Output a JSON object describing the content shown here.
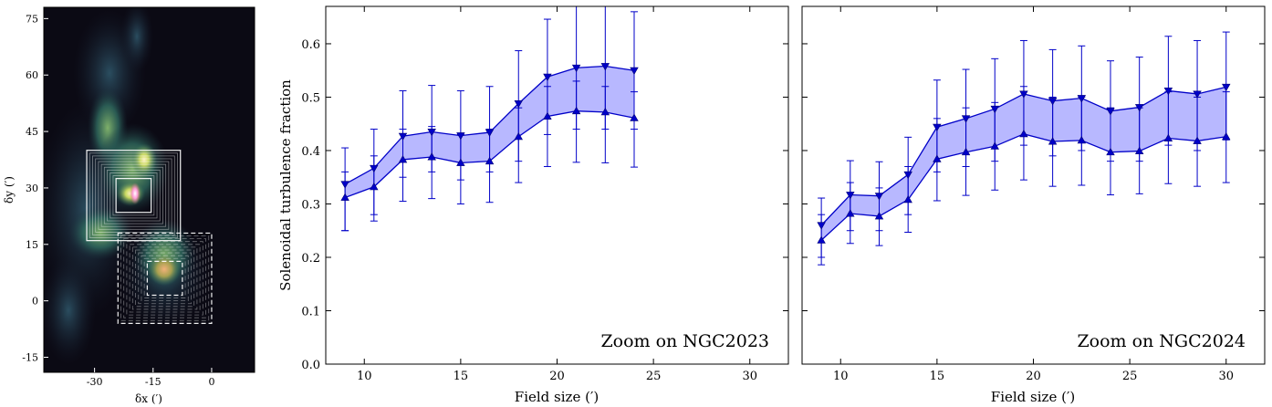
{
  "chart_data": [
    {
      "type": "image",
      "xlabel": "δx (′)",
      "ylabel": "δy (′)",
      "xticks": [
        -30,
        -15,
        0
      ],
      "yticks": [
        -15,
        0,
        15,
        30,
        45,
        60,
        75
      ],
      "xlim": [
        -43,
        11
      ],
      "ylim": [
        -19,
        78
      ],
      "colors": {
        "background": "#0b0a14",
        "emission": "#3f7f6a",
        "bright": "#b8cf58",
        "peak": "#ff9ad8"
      }
    },
    {
      "type": "area",
      "annotation": "Zoom on NGC2023",
      "xlabel": "Field size (′)",
      "ylabel": "Solenoidal turbulence fraction",
      "xlim": [
        8,
        32
      ],
      "ylim": [
        0.0,
        0.67
      ],
      "xticks": [
        10,
        15,
        20,
        25,
        30
      ],
      "yticks": [
        0.0,
        0.1,
        0.2,
        0.3,
        0.4,
        0.5,
        0.6
      ],
      "x": [
        9,
        10.5,
        12,
        13.5,
        15,
        16.5,
        18,
        19.5,
        21,
        22.5,
        24
      ],
      "series": [
        {
          "marker": "triangle-down",
          "values": [
            0.337,
            0.367,
            0.427,
            0.435,
            0.428,
            0.434,
            0.488,
            0.538,
            0.555,
            0.558,
            0.55
          ],
          "err_low": [
            0.25,
            0.28,
            0.35,
            0.36,
            0.345,
            0.36,
            0.38,
            0.43,
            0.44,
            0.44,
            0.44
          ],
          "err_high": [
            0.405,
            0.44,
            0.512,
            0.522,
            0.512,
            0.52,
            0.587,
            0.646,
            0.67,
            0.67,
            0.66
          ]
        },
        {
          "marker": "triangle-up",
          "values": [
            0.312,
            0.332,
            0.383,
            0.388,
            0.377,
            0.38,
            0.426,
            0.464,
            0.474,
            0.472,
            0.461
          ],
          "err_low": [
            0.25,
            0.268,
            0.305,
            0.31,
            0.3,
            0.303,
            0.34,
            0.37,
            0.378,
            0.377,
            0.369
          ],
          "err_high": [
            0.36,
            0.39,
            0.44,
            0.445,
            0.43,
            0.44,
            0.48,
            0.52,
            0.53,
            0.52,
            0.51
          ]
        }
      ],
      "colors": {
        "line": "#0000c8",
        "fill": "#b8b8ff"
      }
    },
    {
      "type": "area",
      "annotation": "Zoom on NGC2024",
      "xlabel": "Field size (′)",
      "xlim": [
        8,
        32
      ],
      "ylim": [
        0.0,
        0.67
      ],
      "xticks": [
        10,
        15,
        20,
        25,
        30
      ],
      "x": [
        9,
        10.5,
        12,
        13.5,
        15,
        16.5,
        18,
        19.5,
        21,
        22.5,
        24,
        25.5,
        27,
        28.5,
        30
      ],
      "series": [
        {
          "marker": "triangle-down",
          "values": [
            0.26,
            0.317,
            0.315,
            0.355,
            0.444,
            0.46,
            0.478,
            0.506,
            0.493,
            0.498,
            0.474,
            0.481,
            0.512,
            0.506,
            0.519
          ],
          "err_low": [
            0.2,
            0.25,
            0.25,
            0.28,
            0.36,
            0.37,
            0.38,
            0.41,
            0.39,
            0.4,
            0.38,
            0.38,
            0.41,
            0.4,
            0.42
          ],
          "err_high": [
            0.311,
            0.381,
            0.379,
            0.425,
            0.532,
            0.552,
            0.572,
            0.606,
            0.589,
            0.596,
            0.568,
            0.575,
            0.614,
            0.606,
            0.622
          ]
        },
        {
          "marker": "triangle-up",
          "values": [
            0.232,
            0.282,
            0.277,
            0.308,
            0.384,
            0.397,
            0.408,
            0.431,
            0.417,
            0.419,
            0.397,
            0.399,
            0.423,
            0.418,
            0.426
          ],
          "err_low": [
            0.186,
            0.226,
            0.222,
            0.247,
            0.306,
            0.316,
            0.326,
            0.345,
            0.333,
            0.335,
            0.317,
            0.319,
            0.338,
            0.333,
            0.34
          ],
          "err_high": [
            0.28,
            0.34,
            0.33,
            0.37,
            0.46,
            0.48,
            0.49,
            0.52,
            0.5,
            0.5,
            0.48,
            0.48,
            0.51,
            0.5,
            0.51
          ]
        }
      ],
      "colors": {
        "line": "#0000c8",
        "fill": "#b8b8ff"
      }
    }
  ]
}
